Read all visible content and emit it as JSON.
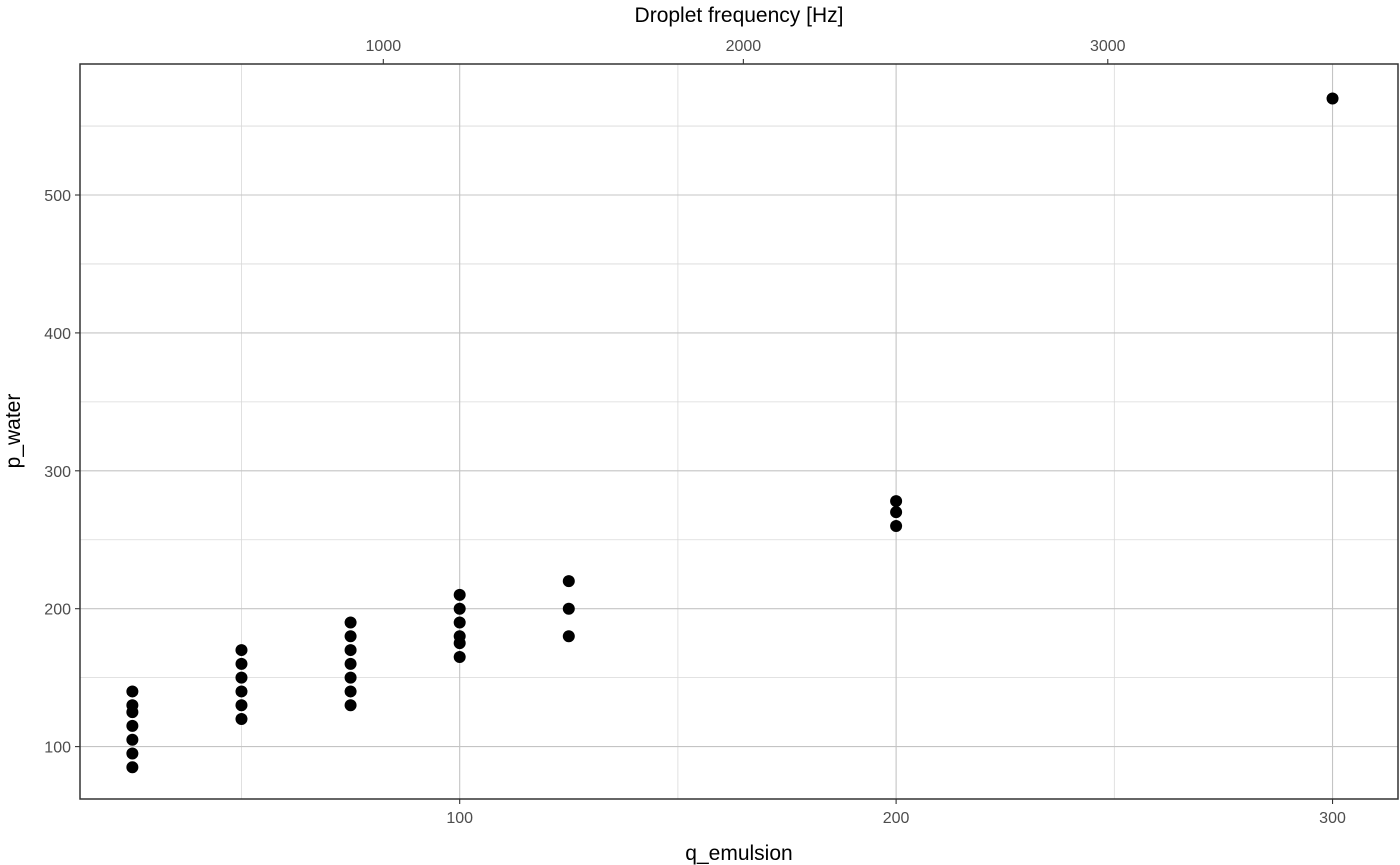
{
  "chart_data": {
    "type": "scatter",
    "xlabel": "q_emulsion",
    "ylabel": "p_water",
    "secondary_xlabel": "Droplet frequency [Hz]",
    "xlim": [
      13,
      315
    ],
    "ylim": [
      62,
      595
    ],
    "x_ticks": [
      100,
      200,
      300
    ],
    "x_minor_gridlines": [
      50,
      150,
      250
    ],
    "y_ticks": [
      100,
      200,
      300,
      400,
      500
    ],
    "y_minor_gridlines": [
      150,
      250,
      350,
      450,
      550
    ],
    "secondary_x_ticks": [
      {
        "label": "1000",
        "x": 82.5
      },
      {
        "label": "2000",
        "x": 165
      },
      {
        "label": "3000",
        "x": 248.5
      }
    ],
    "grid": true,
    "point_color": "#000000",
    "points": [
      {
        "x": 25,
        "y": 85
      },
      {
        "x": 25,
        "y": 95
      },
      {
        "x": 25,
        "y": 105
      },
      {
        "x": 25,
        "y": 115
      },
      {
        "x": 25,
        "y": 125
      },
      {
        "x": 25,
        "y": 130
      },
      {
        "x": 25,
        "y": 140
      },
      {
        "x": 50,
        "y": 120
      },
      {
        "x": 50,
        "y": 130
      },
      {
        "x": 50,
        "y": 140
      },
      {
        "x": 50,
        "y": 150
      },
      {
        "x": 50,
        "y": 160
      },
      {
        "x": 50,
        "y": 170
      },
      {
        "x": 75,
        "y": 130
      },
      {
        "x": 75,
        "y": 140
      },
      {
        "x": 75,
        "y": 150
      },
      {
        "x": 75,
        "y": 160
      },
      {
        "x": 75,
        "y": 170
      },
      {
        "x": 75,
        "y": 180
      },
      {
        "x": 75,
        "y": 190
      },
      {
        "x": 100,
        "y": 165
      },
      {
        "x": 100,
        "y": 175
      },
      {
        "x": 100,
        "y": 180
      },
      {
        "x": 100,
        "y": 190
      },
      {
        "x": 100,
        "y": 200
      },
      {
        "x": 100,
        "y": 210
      },
      {
        "x": 125,
        "y": 180
      },
      {
        "x": 125,
        "y": 200
      },
      {
        "x": 125,
        "y": 220
      },
      {
        "x": 200,
        "y": 260
      },
      {
        "x": 200,
        "y": 270
      },
      {
        "x": 200,
        "y": 278
      },
      {
        "x": 300,
        "y": 570
      }
    ]
  }
}
